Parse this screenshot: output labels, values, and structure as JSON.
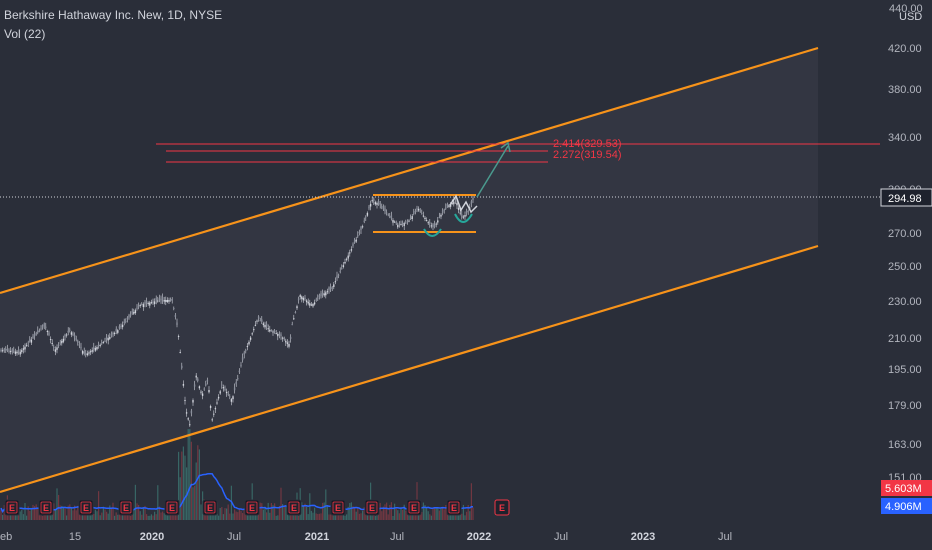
{
  "header": {
    "title": "Berkshire Hathaway Inc. New, 1D, NYSE",
    "volume_label": "Vol (22)"
  },
  "price_axis": {
    "currency": "USD",
    "top_partial_label": "440.00",
    "ticks": [
      "420.00",
      "380.00",
      "340.00",
      "300.00",
      "270.00",
      "250.00",
      "230.00",
      "210.00",
      "195.00",
      "179.00",
      "163.00",
      "151.00"
    ]
  },
  "time_axis": {
    "ticks": [
      "Feb",
      "15",
      "2020",
      "Jul",
      "2021",
      "Jul",
      "2022",
      "Jul",
      "2023",
      "Jul"
    ]
  },
  "badges": {
    "last_price": "294.98",
    "volume_red": "5.603M",
    "volume_blue": "4.906M"
  },
  "fib_levels": {
    "upper": "2.414(329.53)",
    "lower": "2.272(319.54)"
  },
  "earnings_marker": "E",
  "colors": {
    "background": "#2a2e39",
    "channel": "#f7931a",
    "candle_up": "#d1d4dc",
    "candle_down": "#d1d4dc",
    "fib": "#f23645",
    "volume_ma": "#2962ff",
    "volume_badge_red": "#f23645",
    "volume_badge_blue": "#2962ff",
    "projection_arrow": "#4a9a8e"
  }
}
